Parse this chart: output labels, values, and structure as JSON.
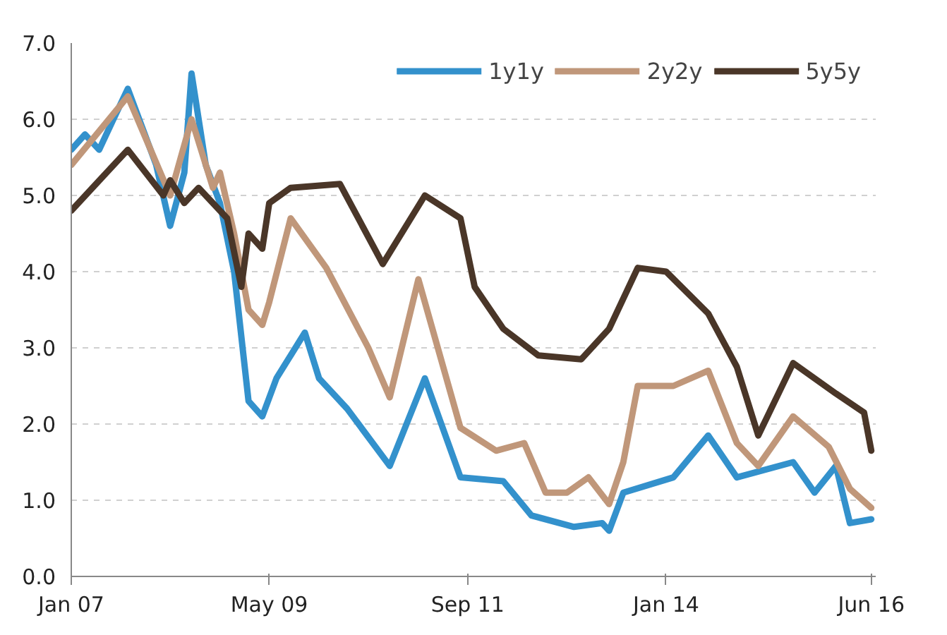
{
  "chart_data": {
    "type": "line",
    "series": [
      {
        "name": "1y1y",
        "color": "#3391cc",
        "x": [
          "2007-01",
          "2007-03",
          "2007-05",
          "2007-07",
          "2007-09",
          "2007-11",
          "2008-01",
          "2008-03",
          "2008-05",
          "2008-06",
          "2008-08",
          "2008-10",
          "2008-12",
          "2009-02",
          "2009-04",
          "2009-06",
          "2009-08",
          "2009-10",
          "2009-12",
          "2010-04",
          "2010-10",
          "2011-03",
          "2011-08",
          "2012-02",
          "2012-06",
          "2012-12",
          "2013-04",
          "2013-05",
          "2013-07",
          "2014-02",
          "2014-07",
          "2014-11",
          "2015-07",
          "2015-10",
          "2016-01",
          "2016-03",
          "2016-06"
        ],
        "values": [
          5.6,
          5.8,
          5.6,
          6.0,
          6.4,
          5.9,
          5.4,
          4.6,
          5.3,
          6.6,
          5.4,
          4.9,
          4.0,
          2.3,
          2.1,
          2.6,
          2.9,
          3.2,
          2.6,
          2.2,
          1.45,
          2.6,
          1.3,
          1.25,
          0.8,
          0.65,
          0.7,
          0.6,
          1.1,
          1.3,
          1.85,
          1.3,
          1.5,
          1.1,
          1.45,
          0.7,
          0.75
        ]
      },
      {
        "name": "2y2y",
        "color": "#c0977a",
        "x": [
          "2007-01",
          "2007-09",
          "2008-03",
          "2008-06",
          "2008-09",
          "2008-10",
          "2008-12",
          "2009-02",
          "2009-04",
          "2009-05",
          "2009-08",
          "2010-01",
          "2010-07",
          "2010-10",
          "2011-02",
          "2011-08",
          "2012-01",
          "2012-05",
          "2012-08",
          "2012-11",
          "2013-02",
          "2013-05",
          "2013-07",
          "2013-09",
          "2014-02",
          "2014-07",
          "2014-11",
          "2015-02",
          "2015-07",
          "2015-12",
          "2016-03",
          "2016-06"
        ],
        "values": [
          5.4,
          6.3,
          5.0,
          6.0,
          5.1,
          5.3,
          4.5,
          3.5,
          3.3,
          3.6,
          4.7,
          4.05,
          3.0,
          2.35,
          3.9,
          1.95,
          1.65,
          1.75,
          1.1,
          1.1,
          1.3,
          0.95,
          1.5,
          2.5,
          2.5,
          2.7,
          1.75,
          1.45,
          2.1,
          1.7,
          1.15,
          0.9
        ]
      },
      {
        "name": "5y5y",
        "color": "#4a3628",
        "x": [
          "2007-01",
          "2007-09",
          "2008-02",
          "2008-03",
          "2008-05",
          "2008-07",
          "2008-11",
          "2009-01",
          "2009-02",
          "2009-04",
          "2009-05",
          "2009-08",
          "2010-03",
          "2010-09",
          "2011-03",
          "2011-08",
          "2011-10",
          "2012-02",
          "2012-07",
          "2013-01",
          "2013-05",
          "2013-09",
          "2014-01",
          "2014-07",
          "2014-11",
          "2015-02",
          "2015-07",
          "2016-01",
          "2016-05",
          "2016-06"
        ],
        "values": [
          4.8,
          5.6,
          5.0,
          5.2,
          4.9,
          5.1,
          4.7,
          3.8,
          4.5,
          4.3,
          4.9,
          5.1,
          5.15,
          4.1,
          5.0,
          4.7,
          3.8,
          3.25,
          2.9,
          2.85,
          3.25,
          4.05,
          4.0,
          3.45,
          2.75,
          1.85,
          2.8,
          2.4,
          2.15,
          1.65
        ]
      }
    ],
    "xlim": [
      "2007-01-01",
      "2016-06-20"
    ],
    "xticks": [
      {
        "value": "2007-01",
        "label": "Jan 07"
      },
      {
        "value": "2009-05",
        "label": "May 09"
      },
      {
        "value": "2011-09",
        "label": "Sep 11"
      },
      {
        "value": "2014-01",
        "label": "Jan 14"
      },
      {
        "value": "2016-06",
        "label": "Jun 16"
      }
    ],
    "ylim": [
      0,
      7
    ],
    "yticks": [
      {
        "value": 0,
        "label": "0.0"
      },
      {
        "value": 1,
        "label": "1.0"
      },
      {
        "value": 2,
        "label": "2.0"
      },
      {
        "value": 3,
        "label": "3.0"
      },
      {
        "value": 4,
        "label": "4.0"
      },
      {
        "value": 5,
        "label": "5.0"
      },
      {
        "value": 6,
        "label": "6.0"
      },
      {
        "value": 7,
        "label": "7.0"
      }
    ],
    "grid": "y",
    "legend": "top right",
    "marker": "none",
    "line_style": "solid"
  }
}
